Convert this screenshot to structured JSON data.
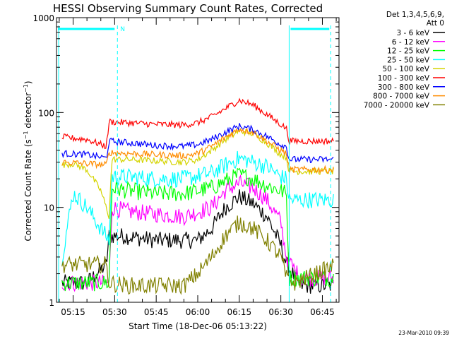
{
  "chart_data": {
    "type": "line",
    "title": "HESSI Observing Summary Count Rates, Corrected",
    "xlabel": "Start Time (18-Dec-06 05:13:22)",
    "ylabel": "Corrected Count Rate (s⁻¹ detector⁻¹)",
    "yscale": "log",
    "ylim": [
      1,
      1000
    ],
    "x_range": [
      "05:09",
      "06:51"
    ],
    "x_ticks": [
      "05:15",
      "05:30",
      "05:45",
      "06:00",
      "06:15",
      "06:30",
      "06:45"
    ],
    "y_ticks": [
      "1",
      "10",
      "100",
      "1000"
    ],
    "legend": {
      "placement": "right",
      "header": [
        "Det 1,3,4,5,6,9,",
        "Att 0"
      ]
    },
    "series": [
      {
        "name": "3 - 6 keV",
        "color": "#000000",
        "x": [
          "05:11",
          "05:20",
          "05:27",
          "05:28",
          "05:33",
          "05:45",
          "06:00",
          "06:05",
          "06:10",
          "06:15",
          "06:20",
          "06:25",
          "06:30",
          "06:32",
          "06:37",
          "06:49"
        ],
        "y": [
          1.6,
          1.6,
          2.5,
          5,
          5,
          4.5,
          4.5,
          6,
          10,
          13,
          11,
          8,
          4,
          2.5,
          1.5,
          1.5
        ]
      },
      {
        "name": "6 - 12 keV",
        "color": "#ff00ff",
        "x": [
          "05:11",
          "05:28",
          "05:29",
          "05:35",
          "05:45",
          "05:55",
          "06:05",
          "06:10",
          "06:15",
          "06:20",
          "06:25",
          "06:30",
          "06:32",
          "06:37",
          "06:49"
        ],
        "y": [
          1.6,
          1.6,
          10,
          9,
          8.5,
          8,
          10,
          15,
          18,
          16,
          12,
          7,
          3,
          1.8,
          1.8
        ]
      },
      {
        "name": "12 - 25 keV",
        "color": "#00ff00",
        "x": [
          "05:11",
          "05:28",
          "05:29",
          "05:35",
          "05:45",
          "05:55",
          "06:05",
          "06:10",
          "06:15",
          "06:20",
          "06:25",
          "06:30",
          "06:32",
          "06:33",
          "06:49"
        ],
        "y": [
          1.6,
          1.6,
          16,
          15,
          14,
          14,
          16,
          19,
          22,
          20,
          17,
          15,
          14,
          1.8,
          1.8
        ]
      },
      {
        "name": "25 - 50 keV",
        "color": "#00ffff",
        "x": [
          "05:11",
          "05:15",
          "05:20",
          "05:25",
          "05:28",
          "05:29",
          "05:35",
          "05:45",
          "05:55",
          "06:05",
          "06:10",
          "06:15",
          "06:20",
          "06:25",
          "06:30",
          "06:32",
          "06:33",
          "06:49"
        ],
        "y": [
          3,
          14,
          10,
          6,
          4.5,
          21,
          21,
          20,
          20,
          23,
          28,
          33,
          30,
          27,
          21,
          20,
          12,
          12
        ]
      },
      {
        "name": "50 - 100 keV",
        "color": "#d4d400",
        "x": [
          "05:11",
          "05:15",
          "05:20",
          "05:25",
          "05:28",
          "05:29",
          "05:35",
          "05:45",
          "05:55",
          "06:00",
          "06:05",
          "06:10",
          "06:15",
          "06:20",
          "06:25",
          "06:30",
          "06:32",
          "06:33",
          "06:49"
        ],
        "y": [
          28,
          29,
          25,
          15,
          8,
          32,
          32,
          31,
          30,
          32,
          40,
          52,
          64,
          60,
          48,
          36,
          34,
          24,
          24
        ]
      },
      {
        "name": "100 - 300 keV",
        "color": "#ff0000",
        "x": [
          "05:11",
          "05:20",
          "05:27",
          "05:28",
          "05:35",
          "05:45",
          "05:55",
          "06:00",
          "06:05",
          "06:10",
          "06:15",
          "06:20",
          "06:25",
          "06:30",
          "06:32",
          "06:33",
          "06:49"
        ],
        "y": [
          55,
          52,
          44,
          80,
          78,
          75,
          74,
          78,
          90,
          110,
          135,
          120,
          95,
          75,
          68,
          50,
          50
        ]
      },
      {
        "name": "300 - 800 keV",
        "color": "#0000ff",
        "x": [
          "05:11",
          "05:20",
          "05:27",
          "05:28",
          "05:35",
          "05:45",
          "05:55",
          "06:00",
          "06:05",
          "06:10",
          "06:15",
          "06:20",
          "06:25",
          "06:30",
          "06:32",
          "06:33",
          "06:49"
        ],
        "y": [
          37,
          36,
          33,
          50,
          48,
          45,
          44,
          46,
          52,
          62,
          72,
          66,
          56,
          46,
          44,
          32,
          32
        ]
      },
      {
        "name": "800 - 7000 keV",
        "color": "#ff8c00",
        "x": [
          "05:11",
          "05:20",
          "05:27",
          "05:28",
          "05:35",
          "05:45",
          "05:55",
          "06:00",
          "06:05",
          "06:10",
          "06:15",
          "06:20",
          "06:25",
          "06:30",
          "06:32",
          "06:33",
          "06:49"
        ],
        "y": [
          30,
          29,
          28,
          38,
          37,
          36,
          35,
          37,
          44,
          55,
          67,
          62,
          50,
          40,
          37,
          25,
          25
        ]
      },
      {
        "name": "7000 - 20000 keV",
        "color": "#808000",
        "x": [
          "05:11",
          "05:20",
          "05:27",
          "05:28",
          "05:35",
          "05:45",
          "05:55",
          "06:00",
          "06:05",
          "06:10",
          "06:15",
          "06:20",
          "06:25",
          "06:30",
          "06:32",
          "06:35",
          "06:49"
        ],
        "y": [
          2.5,
          2.5,
          2.5,
          1.6,
          1.5,
          1.5,
          1.5,
          2,
          3,
          5,
          7,
          6,
          4.5,
          3,
          1.8,
          1.6,
          2.4
        ]
      }
    ],
    "vertical_markers": [
      "05:31",
      "06:33",
      "06:48"
    ],
    "annotation": "N",
    "timestamp": "23-Mar-2010 09:39"
  }
}
